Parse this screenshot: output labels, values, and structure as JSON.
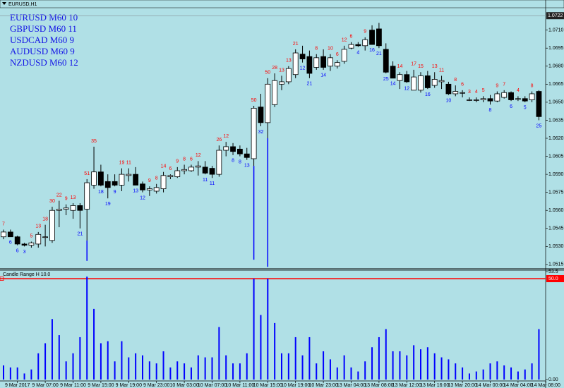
{
  "window_title": "EURUSD,H1",
  "chart_data": {
    "type": "candlestick",
    "background": "#b0e0e6",
    "info_lines": [
      "EURUSD M60 10",
      "GBPUSD M60 11",
      "USDCAD M60 9",
      "AUDUSD M60 9",
      "NZDUSD M60 12"
    ],
    "info_color": "#1414e6",
    "bull_color": "#ffffff",
    "bear_color": "#000000",
    "up_label_color": "#ff0000",
    "down_label_color": "#0000ff",
    "ylim": [
      1.0512,
      1.0728
    ],
    "yticks": [
      {
        "value": 1.071,
        "label": "1.0710"
      },
      1.0695,
      {
        "value": 1.068,
        "label": "1.0680"
      },
      1.0665,
      {
        "value": 1.065,
        "label": "1.0650"
      },
      1.0635,
      {
        "value": 1.062,
        "label": "1.0620"
      },
      1.0605,
      {
        "value": 1.059,
        "label": "1.0590"
      },
      1.0575,
      {
        "value": 1.056,
        "label": "1.0560"
      },
      1.0545,
      {
        "value": 1.053,
        "label": "1.0530"
      },
      1.0515
    ],
    "bid": 1.0722,
    "xticks": [
      {
        "value": 2,
        "label": "9 Mar 2017"
      },
      {
        "value": 6,
        "label": "9 Mar 07:00"
      },
      {
        "value": 10,
        "label": "9 Mar 11:00"
      },
      {
        "value": 14,
        "label": "9 Mar 15:00"
      },
      {
        "value": 18,
        "label": "9 Mar 19:00"
      },
      {
        "value": 22,
        "label": "9 Mar 23:00"
      },
      {
        "value": 26,
        "label": "10 Mar 03:00"
      },
      {
        "value": 30,
        "label": "10 Mar 07:00"
      },
      {
        "value": 34,
        "label": "10 Mar 11:00"
      },
      {
        "value": 38,
        "label": "10 Mar 15:00"
      },
      {
        "value": 42,
        "label": "10 Mar 19:00"
      },
      {
        "value": 46,
        "label": "10 Mar 23:00"
      },
      {
        "value": 50,
        "label": "13 Mar 04:00"
      },
      {
        "value": 54,
        "label": "13 Mar 08:00"
      },
      {
        "value": 58,
        "label": "13 Mar 12:00"
      },
      {
        "value": 62,
        "label": "13 Mar 16:00"
      },
      {
        "value": 66,
        "label": "13 Mar 20:00"
      },
      {
        "value": 70,
        "label": "14 Mar 00:00"
      },
      {
        "value": 74,
        "label": "14 Mar 04:00"
      },
      {
        "value": 78,
        "label": "14 Mar 08:00"
      }
    ],
    "open": [
      1.0538,
      1.0542,
      1.0538,
      1.0532,
      1.0531,
      1.0532,
      1.0538,
      1.0535,
      1.056,
      1.0561,
      1.056,
      1.0564,
      1.0561,
      1.0581,
      1.0592,
      1.0584,
      1.0584,
      1.0581,
      1.0589,
      1.059,
      1.0582,
      1.0577,
      1.0576,
      1.0578,
      1.0588,
      1.0588,
      1.0593,
      1.0593,
      1.0596,
      1.0596,
      1.0595,
      1.059,
      1.061,
      1.0613,
      1.0611,
      1.0607,
      1.0603,
      1.0646,
      1.0633,
      1.0648,
      1.0665,
      1.0667,
      1.0673,
      1.069,
      1.0688,
      1.0679,
      1.0688,
      1.068,
      1.068,
      1.0684,
      1.0695,
      1.0698,
      1.0697,
      1.071,
      1.0711,
      1.0694,
      1.068,
      1.0668,
      1.0673,
      1.066,
      1.066,
      1.0672,
      1.0664,
      1.0667,
      1.0665,
      1.0657,
      1.0658,
      1.0652,
      1.0652,
      1.0652,
      1.0653,
      1.0651,
      1.0654,
      1.0658,
      1.0653,
      1.0653,
      1.0652,
      1.0659
    ],
    "high": [
      1.0544,
      1.0544,
      1.0539,
      1.0533,
      1.0534,
      1.0542,
      1.0548,
      1.0563,
      1.0568,
      1.0565,
      1.0566,
      1.0566,
      1.0586,
      1.0613,
      1.0598,
      1.059,
      1.059,
      1.0595,
      1.0595,
      1.0596,
      1.0584,
      1.058,
      1.0582,
      1.0592,
      1.059,
      1.0596,
      1.0598,
      1.0598,
      1.0601,
      1.0601,
      1.0597,
      1.0614,
      1.0617,
      1.0616,
      1.0614,
      1.0612,
      1.0647,
      1.0657,
      1.067,
      1.0674,
      1.0672,
      1.068,
      1.0694,
      1.0697,
      1.0693,
      1.069,
      1.0694,
      1.069,
      1.0685,
      1.0697,
      1.07,
      1.07,
      1.0704,
      1.0714,
      1.0716,
      1.0699,
      1.0684,
      1.0675,
      1.0676,
      1.0677,
      1.0675,
      1.0676,
      1.0675,
      1.0672,
      1.0667,
      1.0664,
      1.066,
      1.0654,
      1.0654,
      1.0655,
      1.0656,
      1.0659,
      1.066,
      1.0659,
      1.0655,
      1.0655,
      1.0659,
      1.066
    ],
    "low": [
      1.0536,
      1.0538,
      1.0531,
      1.053,
      1.0529,
      1.0529,
      1.053,
      1.0533,
      1.0546,
      1.0556,
      1.0553,
      1.0545,
      1.0535,
      1.0578,
      1.058,
      1.057,
      1.058,
      1.0576,
      1.0584,
      1.0581,
      1.0575,
      1.0572,
      1.0574,
      1.0575,
      1.0586,
      1.0587,
      1.059,
      1.0592,
      1.0589,
      1.059,
      1.0587,
      1.0588,
      1.0605,
      1.0606,
      1.0605,
      1.0602,
      1.0597,
      1.063,
      1.062,
      1.0646,
      1.066,
      1.0665,
      1.067,
      1.0683,
      1.067,
      1.0677,
      1.0677,
      1.0676,
      1.0678,
      1.0682,
      1.0694,
      1.0696,
      1.0693,
      1.0698,
      1.0695,
      1.0674,
      1.067,
      1.0661,
      1.0666,
      1.066,
      1.0658,
      1.0661,
      1.0662,
      1.0661,
      1.0656,
      1.0655,
      1.0654,
      1.0651,
      1.065,
      1.065,
      1.0648,
      1.065,
      1.0653,
      1.0651,
      1.0651,
      1.065,
      1.065,
      1.0635
    ],
    "close": [
      1.0542,
      1.0538,
      1.0532,
      1.0531,
      1.0533,
      1.054,
      1.0538,
      1.056,
      1.0561,
      1.0562,
      1.0564,
      1.056,
      1.0583,
      1.0592,
      1.0581,
      1.0579,
      1.0581,
      1.059,
      1.059,
      1.0581,
      1.0577,
      1.0578,
      1.0579,
      1.0589,
      1.0589,
      1.0593,
      1.0594,
      1.0596,
      1.0597,
      1.0591,
      1.059,
      1.061,
      1.0613,
      1.0609,
      1.0607,
      1.0604,
      1.0645,
      1.0633,
      1.0665,
      1.0668,
      1.0667,
      1.0678,
      1.0691,
      1.0686,
      1.0674,
      1.0687,
      1.0679,
      1.0687,
      1.0683,
      1.0694,
      1.0698,
      1.0697,
      1.0702,
      1.0698,
      1.0697,
      1.0675,
      1.067,
      1.0673,
      1.0667,
      1.0671,
      1.0672,
      1.0662,
      1.0669,
      1.0668,
      1.0657,
      1.0659,
      1.0658,
      1.0652,
      1.0652,
      1.0653,
      1.0651,
      1.0657,
      1.0658,
      1.0652,
      1.0653,
      1.0651,
      1.0657,
      1.0638
    ],
    "range": [
      7,
      6,
      6,
      3,
      5,
      13,
      18,
      30,
      22,
      9,
      13,
      21,
      51,
      35,
      18,
      19,
      9,
      19,
      11,
      13,
      12,
      9,
      8,
      14,
      6,
      9,
      8,
      6,
      12,
      11,
      11,
      26,
      12,
      8,
      8,
      13,
      50,
      32,
      50,
      28,
      13,
      13,
      21,
      12,
      21,
      8,
      14,
      10,
      6,
      12,
      6,
      4,
      9,
      16,
      21,
      25,
      14,
      14,
      12,
      17,
      15,
      16,
      13,
      11,
      10,
      8,
      6,
      3,
      4,
      5,
      8,
      9,
      7,
      6,
      4,
      5,
      8,
      25
    ],
    "spikes": [
      {
        "index": 12,
        "low": 1.0518
      },
      {
        "index": 36,
        "low": 1.0519
      },
      {
        "index": 38,
        "low": 1.0513
      }
    ],
    "spike_color": "#0000ff",
    "indicator": {
      "title": "Candle Range H 10.0",
      "color": "#0000ff",
      "ylim": [
        0,
        53.5
      ],
      "yticks": [
        53.5,
        {
          "value": 0,
          "label": "0.00"
        }
      ],
      "level": {
        "value": 50,
        "label": "50.0"
      },
      "level_color": "#ff0000"
    }
  }
}
